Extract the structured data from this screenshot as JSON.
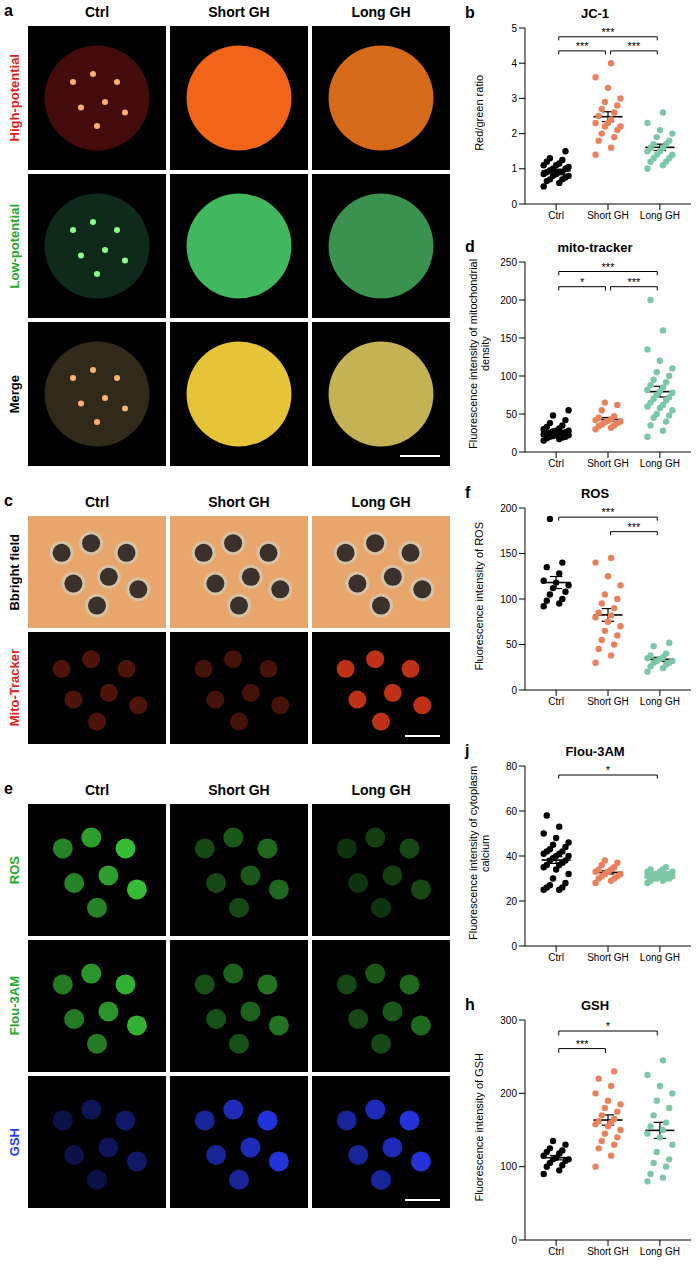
{
  "image_panels": [
    {
      "panel": "a",
      "columns": [
        "Ctrl",
        "Short GH",
        "Long GH"
      ],
      "rows": [
        "High-potential",
        "Low-potential",
        "Merge"
      ]
    },
    {
      "panel": "c",
      "columns": [
        "Ctrl",
        "Short GH",
        "Long GH"
      ],
      "rows": [
        "Bbright field",
        "Mito-Tracker"
      ]
    },
    {
      "panel": "e",
      "columns": [
        "Ctrl",
        "Short GH",
        "Long GH"
      ],
      "rows": [
        "ROS",
        "Flou-3AM",
        "GSH"
      ]
    }
  ],
  "chart_data": [
    {
      "panel": "b",
      "type": "scatter",
      "title": "JC-1",
      "y_label": "Red/green ratio",
      "categories": [
        "Ctrl",
        "Short GH",
        "Long GH"
      ],
      "colors": [
        "#000000",
        "#e8825c",
        "#7cc7a6"
      ],
      "values": [
        [
          0.5,
          0.6,
          0.65,
          0.7,
          0.7,
          0.75,
          0.8,
          0.8,
          0.85,
          0.85,
          0.9,
          0.9,
          0.9,
          0.95,
          1.0,
          1.0,
          1.05,
          1.1,
          1.1,
          1.15,
          1.2,
          1.25,
          1.3,
          1.5
        ],
        [
          1.4,
          1.6,
          1.8,
          1.9,
          2.0,
          2.1,
          2.2,
          2.2,
          2.3,
          2.3,
          2.4,
          2.5,
          2.6,
          2.7,
          2.8,
          2.9,
          3.0,
          3.3,
          3.6,
          4.0
        ],
        [
          1.0,
          1.1,
          1.2,
          1.2,
          1.3,
          1.3,
          1.4,
          1.4,
          1.5,
          1.5,
          1.6,
          1.6,
          1.7,
          1.7,
          1.8,
          1.9,
          2.0,
          2.1,
          2.3,
          2.6
        ]
      ],
      "mean": [
        0.94,
        2.48,
        1.61
      ],
      "sem": [
        0.05,
        0.14,
        0.09
      ],
      "ylim": [
        0,
        5
      ],
      "yticks": [
        0,
        1,
        2,
        3,
        4,
        5
      ],
      "significance": [
        {
          "pair": [
            "Ctrl",
            "Long GH"
          ],
          "label": "***"
        },
        {
          "pair": [
            "Ctrl",
            "Short GH"
          ],
          "label": "***"
        },
        {
          "pair": [
            "Short GH",
            "Long GH"
          ],
          "label": "***"
        }
      ]
    },
    {
      "panel": "d",
      "type": "scatter",
      "title": "mito-tracker",
      "y_label": "Fluorescence intensity of mitochondrial density",
      "categories": [
        "Ctrl",
        "Short GH",
        "Long GH"
      ],
      "colors": [
        "#000000",
        "#e8825c",
        "#7cc7a6"
      ],
      "values": [
        [
          15,
          17,
          18,
          19,
          20,
          20,
          21,
          22,
          22,
          23,
          24,
          24,
          25,
          25,
          26,
          27,
          28,
          28,
          30,
          31,
          33,
          35,
          38,
          42,
          48,
          55
        ],
        [
          30,
          32,
          34,
          35,
          36,
          38,
          39,
          40,
          41,
          42,
          43,
          45,
          47,
          55,
          62,
          65
        ],
        [
          20,
          28,
          35,
          40,
          45,
          48,
          50,
          55,
          58,
          60,
          62,
          65,
          68,
          70,
          72,
          75,
          78,
          80,
          82,
          85,
          88,
          92,
          95,
          100,
          105,
          110,
          120,
          135,
          160,
          200
        ]
      ],
      "mean": [
        27.5,
        42.8,
        79.4
      ],
      "sem": [
        1.8,
        2.6,
        7
      ],
      "ylim": [
        0,
        250
      ],
      "yticks": [
        0,
        50,
        100,
        150,
        200,
        250
      ],
      "significance": [
        {
          "pair": [
            "Ctrl",
            "Long GH"
          ],
          "label": "***"
        },
        {
          "pair": [
            "Ctrl",
            "Short GH"
          ],
          "label": "*"
        },
        {
          "pair": [
            "Short GH",
            "Long GH"
          ],
          "label": "***"
        }
      ]
    },
    {
      "panel": "f",
      "type": "scatter",
      "title": "ROS",
      "y_label": "Fluorescence intensity of ROS",
      "categories": [
        "Ctrl",
        "Short GH",
        "Long GH"
      ],
      "colors": [
        "#000000",
        "#e8825c",
        "#7cc7a6"
      ],
      "values": [
        [
          92,
          95,
          98,
          100,
          105,
          108,
          112,
          115,
          118,
          120,
          128,
          135,
          140,
          188
        ],
        [
          30,
          38,
          45,
          50,
          55,
          60,
          65,
          70,
          75,
          80,
          82,
          85,
          90,
          95,
          100,
          105,
          115,
          125,
          140,
          145
        ],
        [
          20,
          24,
          26,
          28,
          30,
          30,
          32,
          32,
          34,
          35,
          36,
          38,
          40,
          48,
          52
        ]
      ],
      "mean": [
        118.1,
        82.5,
        33.7
      ],
      "sem": [
        6.6,
        7,
        2.2
      ],
      "ylim": [
        0,
        200
      ],
      "yticks": [
        0,
        50,
        100,
        150,
        200
      ],
      "significance": [
        {
          "pair": [
            "Ctrl",
            "Long GH"
          ],
          "label": "***"
        },
        {
          "pair": [
            "Short GH",
            "Long GH"
          ],
          "label": "***"
        }
      ]
    },
    {
      "panel": "j",
      "type": "scatter",
      "title": "Flou-3AM",
      "y_label": "Fluorescence intensity of cytoplasm calcium",
      "categories": [
        "Ctrl",
        "Short GH",
        "Long GH"
      ],
      "colors": [
        "#000000",
        "#e8825c",
        "#7cc7a6"
      ],
      "values": [
        [
          25,
          25,
          26,
          26,
          27,
          28,
          30,
          32,
          34,
          35,
          36,
          36,
          37,
          38,
          38,
          39,
          40,
          40,
          41,
          41,
          42,
          42,
          43,
          44,
          45,
          46,
          48,
          50,
          53,
          58
        ],
        [
          28,
          29,
          30,
          30,
          31,
          31,
          32,
          32,
          33,
          33,
          34,
          34,
          35,
          36,
          37,
          38
        ],
        [
          28,
          29,
          29,
          30,
          30,
          30,
          30,
          31,
          31,
          31,
          31,
          31,
          32,
          32,
          32,
          32,
          33,
          33,
          33,
          34,
          34,
          35
        ]
      ],
      "mean": [
        38.2,
        32.7,
        31.4
      ],
      "sem": [
        1.5,
        0.7,
        0.4
      ],
      "ylim": [
        0,
        80
      ],
      "yticks": [
        0,
        20,
        40,
        60,
        80
      ],
      "significance": [
        {
          "pair": [
            "Ctrl",
            "Long GH"
          ],
          "label": "*"
        }
      ]
    },
    {
      "panel": "h",
      "type": "scatter",
      "title": "GSH",
      "y_label": "Fluorescence intensity of GSH",
      "categories": [
        "Ctrl",
        "Short GH",
        "Long GH"
      ],
      "colors": [
        "#000000",
        "#e8825c",
        "#7cc7a6"
      ],
      "values": [
        [
          90,
          95,
          100,
          102,
          105,
          108,
          110,
          110,
          112,
          115,
          118,
          120,
          122,
          125,
          130,
          135
        ],
        [
          100,
          115,
          125,
          130,
          135,
          140,
          145,
          150,
          155,
          158,
          160,
          162,
          165,
          170,
          175,
          180,
          185,
          190,
          200,
          210,
          220,
          230
        ],
        [
          80,
          85,
          90,
          100,
          105,
          110,
          120,
          130,
          140,
          145,
          150,
          155,
          160,
          170,
          180,
          190,
          200,
          210,
          225,
          245
        ]
      ],
      "mean": [
        112.3,
        163.6,
        149.5
      ],
      "sem": [
        3,
        7,
        11
      ],
      "ylim": [
        0,
        300
      ],
      "yticks": [
        0,
        100,
        200,
        300
      ],
      "significance": [
        {
          "pair": [
            "Ctrl",
            "Short GH"
          ],
          "label": "***"
        },
        {
          "pair": [
            "Ctrl",
            "Long GH"
          ],
          "label": "*"
        }
      ]
    }
  ]
}
